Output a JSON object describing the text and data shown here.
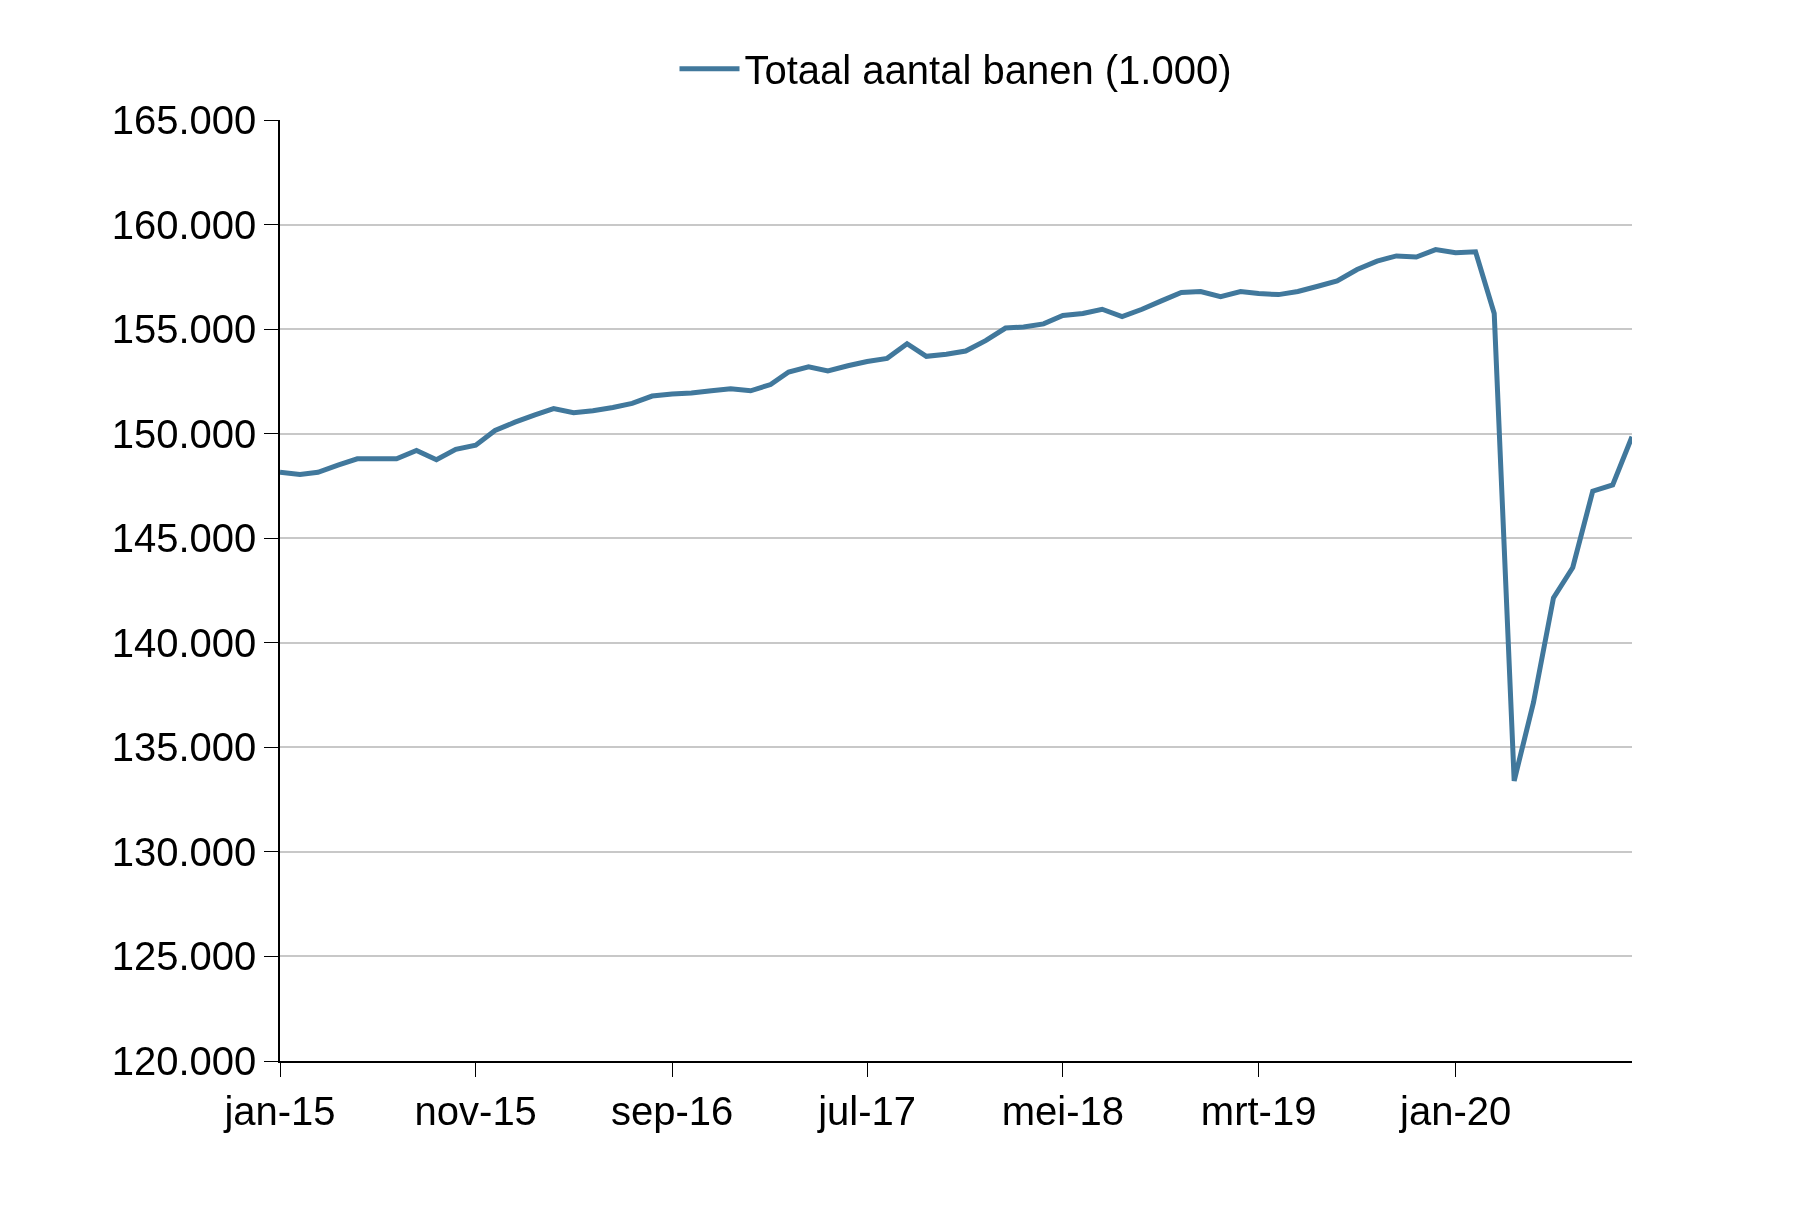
{
  "chart_data": {
    "type": "line",
    "x": [
      "2015-01",
      "2015-02",
      "2015-03",
      "2015-04",
      "2015-05",
      "2015-06",
      "2015-07",
      "2015-08",
      "2015-09",
      "2015-10",
      "2015-11",
      "2015-12",
      "2016-01",
      "2016-02",
      "2016-03",
      "2016-04",
      "2016-05",
      "2016-06",
      "2016-07",
      "2016-08",
      "2016-09",
      "2016-10",
      "2016-11",
      "2016-12",
      "2017-01",
      "2017-02",
      "2017-03",
      "2017-04",
      "2017-05",
      "2017-06",
      "2017-07",
      "2017-08",
      "2017-09",
      "2017-10",
      "2017-11",
      "2017-12",
      "2018-01",
      "2018-02",
      "2018-03",
      "2018-04",
      "2018-05",
      "2018-06",
      "2018-07",
      "2018-08",
      "2018-09",
      "2018-10",
      "2018-11",
      "2018-12",
      "2019-01",
      "2019-02",
      "2019-03",
      "2019-04",
      "2019-05",
      "2019-06",
      "2019-07",
      "2019-08",
      "2019-09",
      "2019-10",
      "2019-11",
      "2019-12",
      "2020-01",
      "2020-02",
      "2020-03",
      "2020-04",
      "2020-05",
      "2020-06",
      "2020-07",
      "2020-08",
      "2020-09",
      "2020-10"
    ],
    "series": [
      {
        "name": "Totaal aantal banen (1.000)",
        "color": "#41789c",
        "values": [
          148150,
          148050,
          148150,
          148500,
          148800,
          148800,
          148800,
          149200,
          148750,
          149250,
          149450,
          150150,
          150550,
          150900,
          151200,
          151000,
          151100,
          151250,
          151450,
          151800,
          151900,
          151950,
          152050,
          152150,
          152050,
          152350,
          152950,
          153200,
          153000,
          153250,
          153450,
          153600,
          154300,
          153700,
          153800,
          153950,
          154450,
          155050,
          155100,
          155250,
          155650,
          155750,
          155950,
          155600,
          155950,
          156350,
          156750,
          156800,
          156550,
          156800,
          156700,
          156650,
          156800,
          157050,
          157300,
          157850,
          158250,
          158500,
          158450,
          158800,
          158650,
          158700,
          155750,
          133400,
          137150,
          142150,
          143600,
          147250,
          147550,
          149850
        ]
      }
    ],
    "ylim": [
      120000,
      165000
    ],
    "yticks": [
      {
        "value": 120000,
        "label": "120.000"
      },
      {
        "value": 125000,
        "label": "125.000"
      },
      {
        "value": 130000,
        "label": "130.000"
      },
      {
        "value": 135000,
        "label": "135.000"
      },
      {
        "value": 140000,
        "label": "140.000"
      },
      {
        "value": 145000,
        "label": "145.000"
      },
      {
        "value": 150000,
        "label": "150.000"
      },
      {
        "value": 155000,
        "label": "155.000"
      },
      {
        "value": 160000,
        "label": "160.000"
      },
      {
        "value": 165000,
        "label": "165.000"
      }
    ],
    "xlim": [
      "2015-01",
      "2020-10"
    ],
    "xticks": [
      {
        "value": "2015-01",
        "label": "jan-15"
      },
      {
        "value": "2015-11",
        "label": "nov-15"
      },
      {
        "value": "2016-09",
        "label": "sep-16"
      },
      {
        "value": "2017-07",
        "label": "jul-17"
      },
      {
        "value": "2018-05",
        "label": "mei-18"
      },
      {
        "value": "2019-03",
        "label": "mrt-19"
      },
      {
        "value": "2020-01",
        "label": "jan-20"
      }
    ],
    "grid": "y",
    "legend": "top",
    "marker": "none",
    "line_style": "solid"
  }
}
